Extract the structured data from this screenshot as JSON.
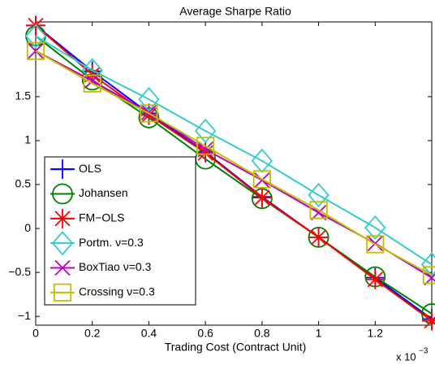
{
  "chart_data": {
    "type": "line",
    "title": "Average Sharpe Ratio",
    "x_label": "Trading Cost (Contract Unit)",
    "x_exponent_label": "x 10",
    "x_exponent": "−3",
    "x": [
      0,
      0.2,
      0.4,
      0.6,
      0.8,
      1,
      1.2,
      1.4
    ],
    "xlim": [
      0,
      1.4
    ],
    "xticks": [
      0,
      0.2,
      0.4,
      0.6,
      0.8,
      1,
      1.2
    ],
    "ylim": [
      -1.1,
      2.35
    ],
    "yticks": [
      {
        "value": -1,
        "label": "−1"
      },
      {
        "value": -0.5,
        "label": "−0.5"
      },
      0,
      0.5,
      1,
      1.5
    ],
    "grid": false,
    "legend": "lower left",
    "series": [
      {
        "name": "OLS",
        "color": "#0000ff",
        "marker": "plus",
        "values": [
          2.31,
          1.79,
          1.31,
          0.87,
          0.36,
          -0.1,
          -0.56,
          -1.03
        ]
      },
      {
        "name": "Johansen",
        "color": "#008000",
        "marker": "circle",
        "values": [
          2.19,
          1.69,
          1.26,
          0.79,
          0.34,
          -0.1,
          -0.55,
          -0.97
        ]
      },
      {
        "name": "FM−OLS",
        "color": "#ff0000",
        "marker": "asterisk",
        "values": [
          2.31,
          1.75,
          1.29,
          0.86,
          0.35,
          -0.1,
          -0.58,
          -1.05
        ]
      },
      {
        "name": "Portm. ν=0.3",
        "color": "#33cccc",
        "marker": "diamond",
        "values": [
          2.19,
          1.8,
          1.47,
          1.11,
          0.77,
          0.38,
          0.01,
          -0.41
        ]
      },
      {
        "name": "BoxTiao ν=0.3",
        "color": "#bf00bf",
        "marker": "x",
        "values": [
          2.02,
          1.68,
          1.32,
          0.9,
          0.55,
          0.18,
          -0.17,
          -0.56
        ]
      },
      {
        "name": "Crossing ν=0.3",
        "color": "#bfbf00",
        "marker": "square",
        "values": [
          2.02,
          1.65,
          1.31,
          0.94,
          0.56,
          0.21,
          -0.18,
          -0.53
        ]
      }
    ]
  }
}
